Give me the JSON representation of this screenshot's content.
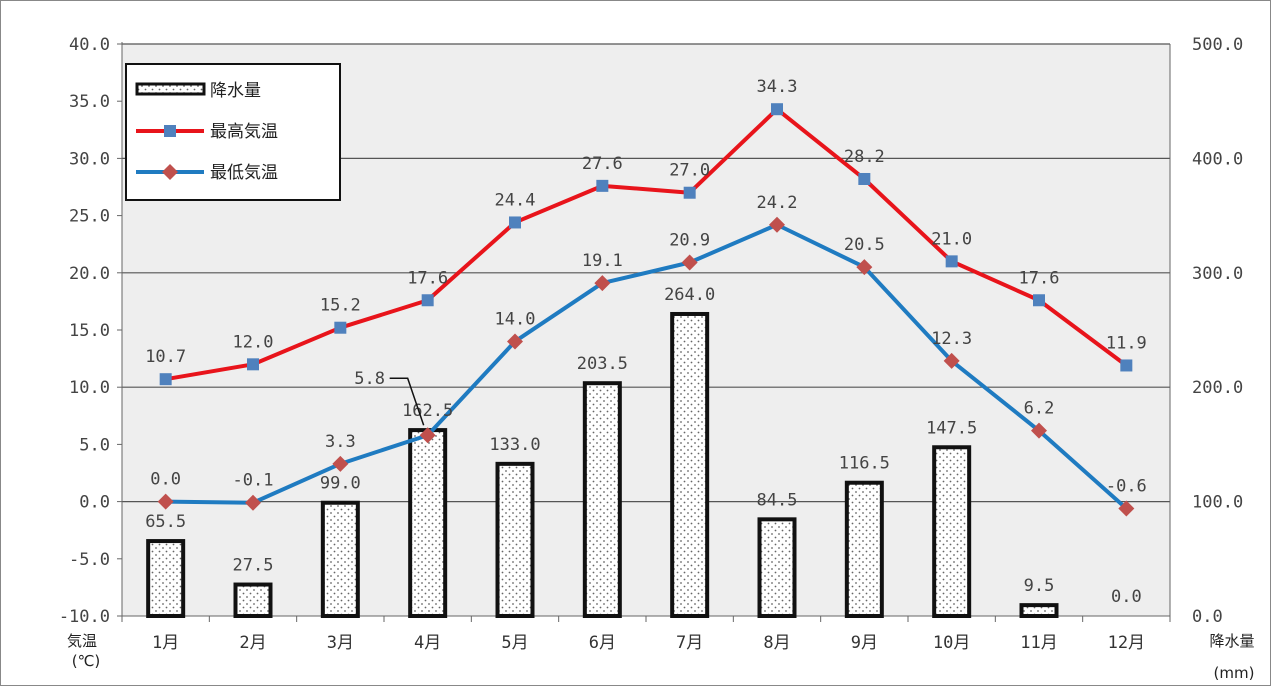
{
  "chart_data": {
    "type": "bar+line",
    "categories": [
      "1月",
      "2月",
      "3月",
      "4月",
      "5月",
      "6月",
      "7月",
      "8月",
      "9月",
      "10月",
      "11月",
      "12月"
    ],
    "series": [
      {
        "name": "降水量",
        "type": "bar",
        "axis": "right",
        "values": [
          65.5,
          27.5,
          99.0,
          162.5,
          133.0,
          203.5,
          264.0,
          84.5,
          116.5,
          147.5,
          9.5,
          0.0
        ],
        "labels": [
          "65.5",
          "27.5",
          "99.0",
          "162.5",
          "133.0",
          "203.5",
          "264.0",
          "84.5",
          "116.5",
          "147.5",
          "9.5",
          "0.0"
        ]
      },
      {
        "name": "最高気温",
        "type": "line",
        "axis": "left",
        "color": "#e8141b",
        "marker": "square",
        "marker_color": "#4f81bd",
        "values": [
          10.7,
          12.0,
          15.2,
          17.6,
          24.4,
          27.6,
          27.0,
          34.3,
          28.2,
          21.0,
          17.6,
          11.9
        ],
        "labels": [
          "10.7",
          "12.0",
          "15.2",
          "17.6",
          "24.4",
          "27.6",
          "27.0",
          "34.3",
          "28.2",
          "21.0",
          "17.6",
          "11.9"
        ]
      },
      {
        "name": "最低気温",
        "type": "line",
        "axis": "left",
        "color": "#1f7bc1",
        "marker": "diamond",
        "marker_color": "#c0504d",
        "values": [
          0.0,
          -0.1,
          3.3,
          5.8,
          14.0,
          19.1,
          20.9,
          24.2,
          20.5,
          12.3,
          6.2,
          -0.6
        ],
        "labels": [
          "0.0",
          "-0.1",
          "3.3",
          "5.8",
          "14.0",
          "19.1",
          "20.9",
          "24.2",
          "20.5",
          "12.3",
          "6.2",
          "-0.6"
        ]
      }
    ],
    "y_left": {
      "label_line1": "気温",
      "label_line2": "(℃)",
      "ylim": [
        -10,
        40
      ],
      "ticks": [
        "40.0",
        "35.0",
        "30.0",
        "25.0",
        "20.0",
        "15.0",
        "10.0",
        "5.0",
        "0.0",
        "-5.0",
        "-10.0"
      ]
    },
    "y_right": {
      "label_line1": "降水量",
      "label_line2": "(mm)",
      "ylim": [
        0,
        500
      ],
      "ticks": [
        "500.0",
        "400.0",
        "300.0",
        "200.0",
        "100.0",
        "0.0"
      ]
    },
    "legend": {
      "placement": "top-left"
    },
    "grid": true
  }
}
